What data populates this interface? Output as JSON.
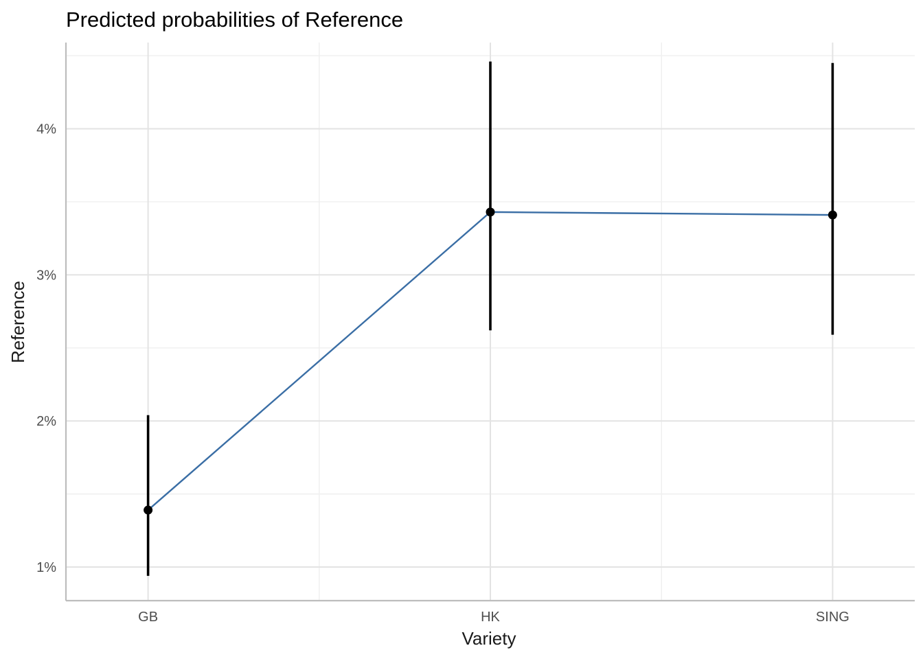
{
  "chart_data": {
    "type": "line",
    "title": "Predicted probabilities of Reference",
    "xlabel": "Variety",
    "ylabel": "Reference",
    "categories": [
      "GB",
      "HK",
      "SING"
    ],
    "values": [
      1.39,
      3.43,
      3.41
    ],
    "ci_low": [
      0.94,
      2.62,
      2.59
    ],
    "ci_high": [
      2.04,
      4.46,
      4.45
    ],
    "ylim": [
      0.77,
      4.59
    ],
    "y_ticks": [
      1,
      2,
      3,
      4
    ],
    "y_tick_labels": [
      "1%",
      "2%",
      "3%",
      "4%"
    ],
    "y_minor_ticks": [
      1.5,
      2.5,
      3.5,
      4.5
    ],
    "grid": true,
    "legend": "none",
    "line_color": "#3a6ea5",
    "point_color": "#000000",
    "errorbar_color": "#000000"
  }
}
